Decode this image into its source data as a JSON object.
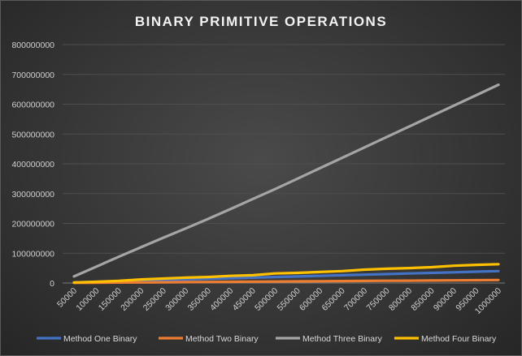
{
  "chart_data": {
    "type": "line",
    "title": "BINARY PRIMITIVE OPERATIONS",
    "xlabel": "",
    "ylabel": "",
    "categories": [
      "50000",
      "100000",
      "150000",
      "200000",
      "250000",
      "300000",
      "350000",
      "400000",
      "450000",
      "500000",
      "550000",
      "600000",
      "650000",
      "700000",
      "750000",
      "800000",
      "850000",
      "900000",
      "950000",
      "1000000"
    ],
    "yticks": [
      "0",
      "100000000",
      "200000000",
      "300000000",
      "400000000",
      "500000000",
      "600000000",
      "700000000",
      "800000000"
    ],
    "ylim": [
      0,
      800000000
    ],
    "grid": true,
    "legend_position": "bottom",
    "series": [
      {
        "name": "Method One Binary",
        "color": "#4472C4",
        "values": [
          2000000,
          4000000,
          6000000,
          8000000,
          10000000,
          12000000,
          14000000,
          16000000,
          18000000,
          20000000,
          22000000,
          24000000,
          26000000,
          28000000,
          30000000,
          32000000,
          34000000,
          36000000,
          38000000,
          40000000
        ]
      },
      {
        "name": "Method Two Binary",
        "color": "#ED7D31",
        "values": [
          500000,
          1000000,
          1500000,
          2000000,
          2500000,
          3000000,
          3500000,
          4000000,
          4500000,
          5000000,
          5500000,
          6000000,
          6500000,
          7000000,
          7500000,
          8000000,
          8500000,
          9000000,
          9500000,
          10000000
        ]
      },
      {
        "name": "Method Three Binary",
        "color": "#A5A5A5",
        "values": [
          22000000,
          55000000,
          88000000,
          120000000,
          152000000,
          183000000,
          215000000,
          248000000,
          282000000,
          315000000,
          350000000,
          385000000,
          420000000,
          455000000,
          490000000,
          525000000,
          560000000,
          595000000,
          630000000,
          665000000
        ]
      },
      {
        "name": "Method Four Binary",
        "color": "#FFC000",
        "values": [
          2000000,
          4000000,
          7000000,
          12000000,
          15000000,
          18000000,
          20000000,
          24000000,
          26000000,
          32000000,
          34000000,
          37000000,
          40000000,
          45000000,
          48000000,
          50000000,
          53000000,
          58000000,
          61000000,
          63000000
        ]
      }
    ]
  }
}
